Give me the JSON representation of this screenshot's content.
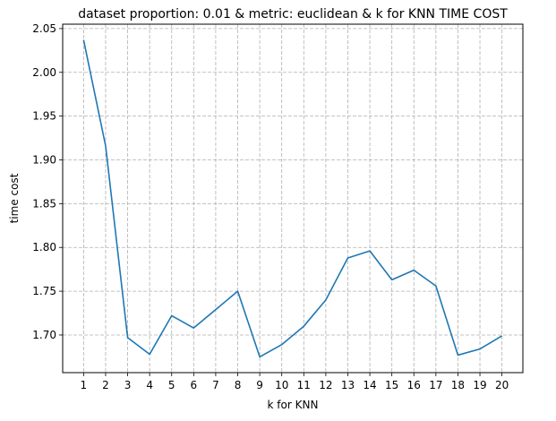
{
  "chart_data": {
    "type": "line",
    "title": "dataset proportion: 0.01 & metric: euclidean & k for KNN TIME COST",
    "xlabel": "k for KNN",
    "ylabel": "time cost",
    "x": [
      1,
      2,
      3,
      4,
      5,
      6,
      7,
      8,
      9,
      10,
      11,
      12,
      13,
      14,
      15,
      16,
      17,
      18,
      19,
      20
    ],
    "x_tick_labels": [
      "1",
      "2",
      "3",
      "4",
      "5",
      "6",
      "7",
      "8",
      "9",
      "10",
      "11",
      "12",
      "13",
      "14",
      "15",
      "16",
      "17",
      "18",
      "19",
      "20"
    ],
    "series": [
      {
        "values": [
          2.037,
          1.916,
          1.697,
          1.678,
          1.722,
          1.708,
          1.729,
          1.75,
          1.675,
          1.689,
          1.71,
          1.74,
          1.788,
          1.796,
          1.763,
          1.774,
          1.756,
          1.677,
          1.684,
          1.699
        ],
        "color": "#1f77b4"
      }
    ],
    "xlim": [
      0.05,
      20.95
    ],
    "ylim": [
      1.657,
      2.055
    ],
    "y_ticks": [
      1.7,
      1.75,
      1.8,
      1.85,
      1.9,
      1.95,
      2.0,
      2.05
    ],
    "y_tick_labels": [
      "1.70",
      "1.75",
      "1.80",
      "1.85",
      "1.90",
      "1.95",
      "2.00",
      "2.05"
    ],
    "grid": true,
    "grid_color": "#b0b0b0"
  }
}
